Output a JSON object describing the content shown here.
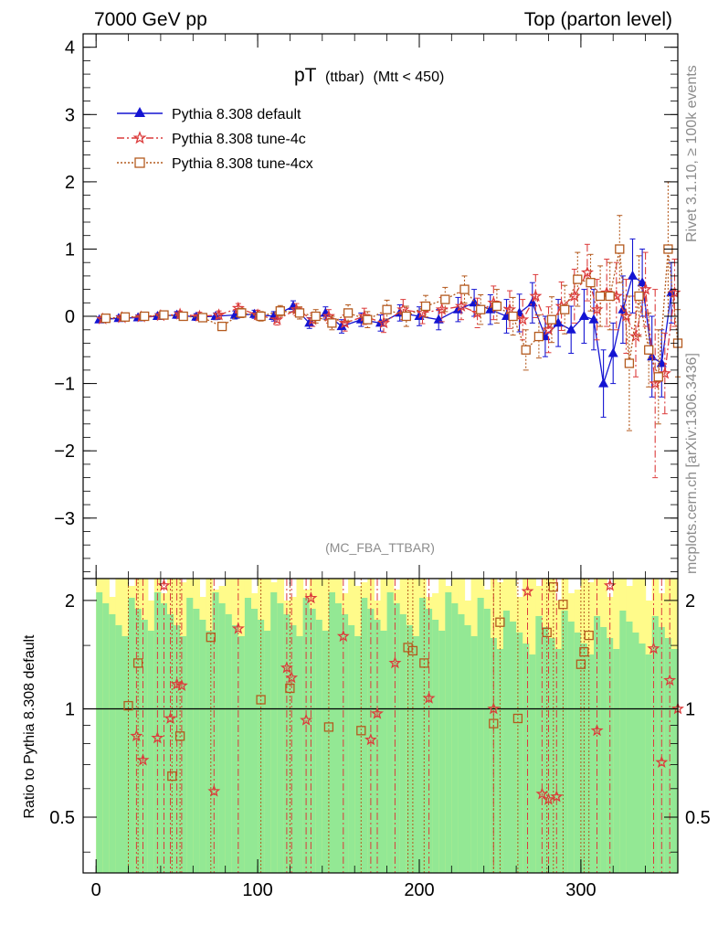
{
  "header": {
    "left": "7000 GeV pp",
    "right": "Top (parton level)"
  },
  "side": {
    "rivet": "Rivet 3.1.10, ≥ 100k events",
    "mcplots": "mcplots.cern.ch [arXiv:1306.3436]"
  },
  "chart_data": {
    "type": "line",
    "title": "pT",
    "title_small": "(ttbar)",
    "title_suffix": "(Mtt < 450)",
    "watermark": "(MC_FBA_TTBAR)",
    "xlim": [
      -8,
      360
    ],
    "ylim": [
      -3.9,
      4.2
    ],
    "ratio_ylim": [
      0.35,
      2.3
    ],
    "ratio_ylabel": "Ratio to Pythia 8.308 default",
    "legend_position": "top-left",
    "x_ticks": [
      0,
      100,
      200,
      300
    ],
    "y_ticks": [
      -3,
      -2,
      -1,
      0,
      1,
      2,
      3,
      4
    ],
    "ratio_ticks": [
      0.5,
      1,
      2
    ],
    "colors": {
      "default": "#1414d2",
      "tune4c": "#dc3c3c",
      "tune4cx": "#b45a1e",
      "band_green": "#93e894",
      "band_yellow": "#fffb8a"
    },
    "series": [
      {
        "name": "Pythia 8.308 default",
        "marker": "triangle",
        "x": [
          2,
          14,
          26,
          38,
          50,
          62,
          74,
          86,
          98,
          110,
          122,
          132,
          142,
          152,
          164,
          176,
          188,
          200,
          212,
          224,
          234,
          244,
          254,
          262,
          270,
          278,
          286,
          294,
          302,
          308,
          314,
          320,
          326,
          332,
          338,
          344,
          350,
          356
        ],
        "y": [
          -0.05,
          -0.03,
          -0.02,
          0.0,
          0.02,
          -0.01,
          0.0,
          0.02,
          0.03,
          0.0,
          0.15,
          -0.1,
          0.05,
          -0.15,
          -0.05,
          -0.1,
          0.05,
          0.0,
          -0.05,
          0.1,
          0.2,
          0.1,
          0.0,
          0.05,
          0.2,
          -0.3,
          -0.1,
          -0.2,
          0.0,
          -0.05,
          -1.0,
          -0.55,
          0.1,
          0.6,
          0.5,
          -0.6,
          -0.7,
          0.35
        ],
        "err": [
          0.04,
          0.04,
          0.04,
          0.04,
          0.05,
          0.05,
          0.05,
          0.06,
          0.06,
          0.07,
          0.08,
          0.08,
          0.09,
          0.1,
          0.1,
          0.12,
          0.12,
          0.14,
          0.15,
          0.18,
          0.2,
          0.22,
          0.25,
          0.28,
          0.3,
          0.3,
          0.35,
          0.35,
          0.4,
          0.45,
          0.5,
          0.45,
          0.5,
          0.55,
          0.5,
          0.6,
          0.5,
          0.45
        ]
      },
      {
        "name": "Pythia 8.308 tune-4c",
        "marker": "star",
        "x": [
          4,
          16,
          28,
          40,
          52,
          64,
          76,
          88,
          100,
          112,
          124,
          134,
          144,
          154,
          166,
          178,
          190,
          202,
          214,
          226,
          236,
          246,
          256,
          264,
          272,
          280,
          288,
          296,
          304,
          310,
          316,
          322,
          328,
          334,
          340,
          346,
          352,
          358
        ],
        "y": [
          -0.04,
          -0.02,
          -0.01,
          0.01,
          0.03,
          0.0,
          0.02,
          0.12,
          0.02,
          -0.05,
          0.1,
          -0.05,
          0.0,
          -0.1,
          0.0,
          -0.1,
          0.1,
          0.05,
          0.1,
          0.15,
          0.05,
          0.2,
          0.1,
          -0.05,
          0.3,
          -0.2,
          0.15,
          0.3,
          0.65,
          0.1,
          0.35,
          0.3,
          0.0,
          -0.3,
          0.4,
          -1.0,
          -0.85,
          0.35
        ],
        "err": [
          0.04,
          0.04,
          0.05,
          0.05,
          0.05,
          0.06,
          0.06,
          0.07,
          0.07,
          0.08,
          0.09,
          0.1,
          0.1,
          0.12,
          0.12,
          0.14,
          0.15,
          0.16,
          0.18,
          0.2,
          0.22,
          0.25,
          0.28,
          0.3,
          0.32,
          0.34,
          0.36,
          0.4,
          0.42,
          0.45,
          0.5,
          0.5,
          0.55,
          0.6,
          0.55,
          1.4,
          0.6,
          0.5
        ]
      },
      {
        "name": "Pythia 8.308 tune-4cx",
        "marker": "square",
        "x": [
          6,
          18,
          30,
          42,
          54,
          66,
          78,
          90,
          102,
          114,
          126,
          136,
          146,
          156,
          168,
          180,
          192,
          204,
          216,
          228,
          238,
          248,
          258,
          266,
          274,
          282,
          290,
          298,
          306,
          312,
          318,
          324,
          330,
          336,
          342,
          348,
          354,
          360
        ],
        "y": [
          -0.03,
          -0.01,
          0.0,
          0.02,
          0.0,
          -0.02,
          -0.15,
          0.05,
          0.0,
          0.08,
          0.05,
          0.0,
          -0.1,
          0.05,
          -0.05,
          0.1,
          0.0,
          0.15,
          0.25,
          0.4,
          0.1,
          0.15,
          0.0,
          -0.5,
          -0.3,
          -0.05,
          0.1,
          0.55,
          0.5,
          0.3,
          0.3,
          1.0,
          -0.7,
          0.3,
          -0.5,
          -0.9,
          1.0,
          -0.4
        ],
        "err": [
          0.04,
          0.04,
          0.05,
          0.05,
          0.05,
          0.06,
          0.06,
          0.07,
          0.07,
          0.08,
          0.09,
          0.1,
          0.1,
          0.12,
          0.12,
          0.14,
          0.15,
          0.16,
          0.18,
          0.2,
          0.22,
          0.25,
          0.28,
          0.3,
          0.32,
          0.34,
          0.36,
          0.4,
          0.42,
          0.45,
          0.5,
          0.5,
          1.0,
          0.6,
          0.55,
          0.7,
          1.0,
          0.5
        ]
      }
    ],
    "ratio": {
      "tune4c": {
        "x": [
          25,
          29,
          38,
          42,
          46,
          50,
          53,
          73,
          88,
          118,
          121,
          130,
          133,
          153,
          170,
          174,
          185,
          206,
          246,
          267,
          276,
          280,
          285,
          310,
          318,
          345,
          350,
          355,
          360
        ],
        "y": [
          0.84,
          0.72,
          0.83,
          2.2,
          0.94,
          1.17,
          1.16,
          0.59,
          1.67,
          1.3,
          1.22,
          0.93,
          2.03,
          1.59,
          0.82,
          0.97,
          1.34,
          1.07,
          1.0,
          2.12,
          0.58,
          0.56,
          0.57,
          0.87,
          2.2,
          1.47,
          0.71,
          1.2,
          1.0
        ]
      },
      "tune4cx": {
        "x": [
          20,
          26,
          47,
          52,
          71,
          102,
          120,
          144,
          164,
          193,
          196,
          203,
          246,
          250,
          261,
          279,
          283,
          289,
          300,
          302,
          305
        ],
        "y": [
          1.02,
          1.34,
          0.65,
          0.84,
          1.58,
          1.06,
          1.14,
          0.89,
          0.87,
          1.48,
          1.45,
          1.34,
          0.91,
          1.74,
          0.94,
          1.63,
          2.18,
          1.95,
          1.33,
          1.44,
          1.6
        ]
      }
    }
  }
}
